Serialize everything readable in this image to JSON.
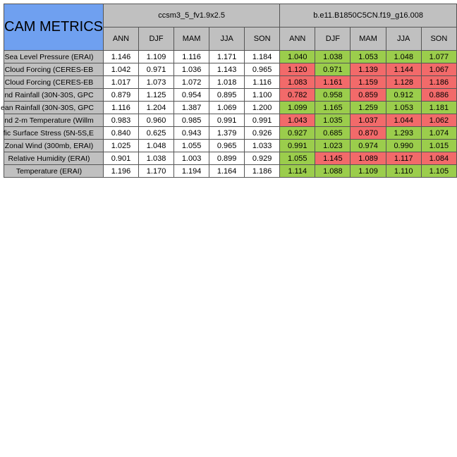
{
  "title": "CAM METRICS",
  "cases": [
    "ccsm3_5_fv1.9x2.5",
    "b.e11.B1850C5CN.f19_g16.008"
  ],
  "seasons": [
    "ANN",
    "DJF",
    "MAM",
    "JJA",
    "SON"
  ],
  "colors": {
    "header": "#c0c0c0",
    "title": "#6fa0f0",
    "better": "#9bcd4c",
    "worse": "#f26a6a",
    "plain": "#ffffff"
  },
  "chart_data": {
    "type": "table",
    "title": "CAM METRICS",
    "columns": [
      "ANN",
      "DJF",
      "MAM",
      "JJA",
      "SON"
    ],
    "rows": [
      {
        "metric": "Sea Level Pressure (ERAI)",
        "ref": [
          "1.146",
          "1.109",
          "1.116",
          "1.171",
          "1.184"
        ],
        "test": [
          "1.040",
          "1.038",
          "1.053",
          "1.048",
          "1.077"
        ],
        "status": [
          "better",
          "better",
          "better",
          "better",
          "better"
        ]
      },
      {
        "metric": "Cloud Forcing (CERES-EB",
        "ref": [
          "1.042",
          "0.971",
          "1.036",
          "1.143",
          "0.965"
        ],
        "test": [
          "1.120",
          "0.971",
          "1.139",
          "1.144",
          "1.067"
        ],
        "status": [
          "worse",
          "better",
          "worse",
          "worse",
          "worse"
        ]
      },
      {
        "metric": "Cloud Forcing (CERES-EB",
        "ref": [
          "1.017",
          "1.073",
          "1.072",
          "1.018",
          "1.116"
        ],
        "test": [
          "1.083",
          "1.161",
          "1.159",
          "1.128",
          "1.186"
        ],
        "status": [
          "worse",
          "worse",
          "worse",
          "worse",
          "worse"
        ]
      },
      {
        "metric": "nd Rainfall (30N-30S, GPC",
        "ref": [
          "0.879",
          "1.125",
          "0.954",
          "0.895",
          "1.100"
        ],
        "test": [
          "0.782",
          "0.958",
          "0.859",
          "0.912",
          "0.886"
        ],
        "status": [
          "worse",
          "better",
          "worse",
          "better",
          "worse"
        ]
      },
      {
        "metric": "ean Rainfall (30N-30S, GPC",
        "ref": [
          "1.116",
          "1.204",
          "1.387",
          "1.069",
          "1.200"
        ],
        "test": [
          "1.099",
          "1.165",
          "1.259",
          "1.053",
          "1.181"
        ],
        "status": [
          "better",
          "better",
          "better",
          "better",
          "better"
        ]
      },
      {
        "metric": "nd 2-m Temperature (Willm",
        "ref": [
          "0.983",
          "0.960",
          "0.985",
          "0.991",
          "0.991"
        ],
        "test": [
          "1.043",
          "1.035",
          "1.037",
          "1.044",
          "1.062"
        ],
        "status": [
          "worse",
          "better",
          "worse",
          "worse",
          "worse"
        ]
      },
      {
        "metric": "fic Surface Stress (5N-5S,E",
        "ref": [
          "0.840",
          "0.625",
          "0.943",
          "1.379",
          "0.926"
        ],
        "test": [
          "0.927",
          "0.685",
          "0.870",
          "1.293",
          "1.074"
        ],
        "status": [
          "better",
          "better",
          "worse",
          "better",
          "better"
        ]
      },
      {
        "metric": "Zonal Wind (300mb, ERAI)",
        "ref": [
          "1.025",
          "1.048",
          "1.055",
          "0.965",
          "1.033"
        ],
        "test": [
          "0.991",
          "1.023",
          "0.974",
          "0.990",
          "1.015"
        ],
        "status": [
          "better",
          "better",
          "better",
          "better",
          "better"
        ]
      },
      {
        "metric": "Relative Humidity (ERAI)",
        "ref": [
          "0.901",
          "1.038",
          "1.003",
          "0.899",
          "0.929"
        ],
        "test": [
          "1.055",
          "1.145",
          "1.089",
          "1.117",
          "1.084"
        ],
        "status": [
          "better",
          "worse",
          "worse",
          "worse",
          "worse"
        ]
      },
      {
        "metric": "Temperature (ERAI)",
        "ref": [
          "1.196",
          "1.170",
          "1.194",
          "1.164",
          "1.186"
        ],
        "test": [
          "1.114",
          "1.088",
          "1.109",
          "1.110",
          "1.105"
        ],
        "status": [
          "better",
          "better",
          "better",
          "better",
          "better"
        ]
      }
    ]
  }
}
